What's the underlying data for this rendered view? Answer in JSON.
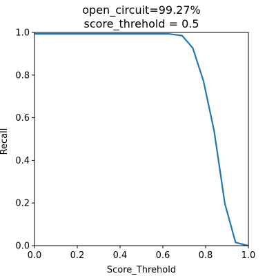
{
  "chart_data": {
    "type": "line",
    "title_lines": [
      "open_circuit=99.27%",
      "score_threhold = 0.5"
    ],
    "xlabel": "Score_Threhold",
    "ylabel": "Recall",
    "xlim": [
      0.0,
      1.0
    ],
    "ylim": [
      0.0,
      1.0
    ],
    "xticks": [
      0.0,
      0.2,
      0.4,
      0.6,
      0.8,
      1.0
    ],
    "yticks": [
      0.0,
      0.2,
      0.4,
      0.6,
      0.8,
      1.0
    ],
    "xtick_labels": [
      "0.0",
      "0.2",
      "0.4",
      "0.6",
      "0.8",
      "1.0"
    ],
    "ytick_labels": [
      "0.0",
      "0.2",
      "0.4",
      "0.6",
      "0.8",
      "1.0"
    ],
    "grid": false,
    "series": [
      {
        "color": "#1f77b4",
        "x": [
          0.0,
          0.05,
          0.1,
          0.15,
          0.2,
          0.25,
          0.3,
          0.35,
          0.4,
          0.45,
          0.5,
          0.55,
          0.6,
          0.63,
          0.69,
          0.74,
          0.79,
          0.84,
          0.89,
          0.94,
          0.99,
          1.0
        ],
        "y": [
          0.993,
          0.993,
          0.993,
          0.993,
          0.993,
          0.993,
          0.993,
          0.993,
          0.993,
          0.993,
          0.993,
          0.993,
          0.993,
          0.993,
          0.985,
          0.927,
          0.772,
          0.537,
          0.197,
          0.015,
          0.002,
          0.0
        ]
      }
    ]
  }
}
